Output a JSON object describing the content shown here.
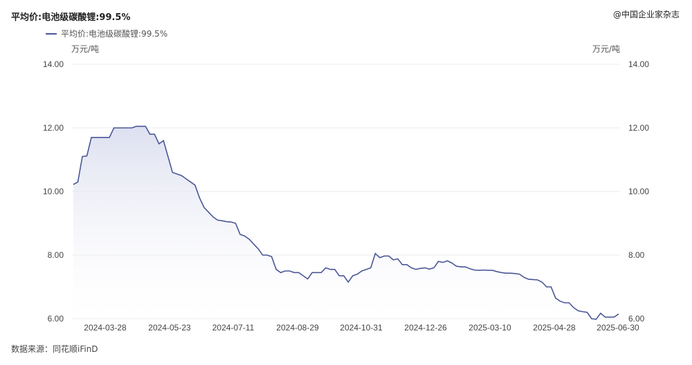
{
  "header": {
    "title": "平均价:电池级碳酸锂:99.5%",
    "watermark": "@中国企业家杂志"
  },
  "footer": {
    "source": "数据来源：同花顺iFinD"
  },
  "colors": {
    "line": "#4a5796",
    "area_top": "#d9dcee",
    "grid": "#ebebeb",
    "background": "#ffffff"
  },
  "chart_data": {
    "type": "area",
    "title": "平均价:电池级碳酸锂:99.5%",
    "ylabel_left": "万元/吨",
    "ylabel_right": "万元/吨",
    "ylim": [
      6,
      14
    ],
    "yticks": [
      "6.00",
      "8.00",
      "10.00",
      "12.00",
      "14.00"
    ],
    "xticks": [
      "2024-03-28",
      "2024-05-23",
      "2024-07-11",
      "2024-08-29",
      "2024-10-31",
      "2024-12-26",
      "2025-03-10",
      "2025-04-28",
      "2025-06-30"
    ],
    "grid": true,
    "legend_position": "top-left",
    "series": [
      {
        "name": "平均价:电池级碳酸锂:99.5%",
        "values": [
          10.22,
          10.3,
          11.1,
          11.12,
          11.7,
          11.7,
          11.7,
          11.7,
          11.7,
          12.0,
          12.0,
          12.0,
          12.0,
          12.0,
          12.05,
          12.05,
          12.05,
          11.8,
          11.8,
          11.5,
          11.6,
          11.1,
          10.6,
          10.55,
          10.5,
          10.4,
          10.3,
          10.2,
          9.8,
          9.5,
          9.35,
          9.2,
          9.1,
          9.08,
          9.05,
          9.04,
          9.0,
          8.65,
          8.6,
          8.5,
          8.35,
          8.2,
          8.0,
          8.0,
          7.95,
          7.55,
          7.45,
          7.5,
          7.5,
          7.45,
          7.45,
          7.35,
          7.25,
          7.45,
          7.45,
          7.45,
          7.6,
          7.55,
          7.55,
          7.35,
          7.35,
          7.15,
          7.35,
          7.4,
          7.5,
          7.55,
          7.6,
          8.05,
          7.92,
          7.97,
          7.97,
          7.85,
          7.88,
          7.7,
          7.7,
          7.6,
          7.55,
          7.58,
          7.6,
          7.56,
          7.6,
          7.8,
          7.77,
          7.82,
          7.75,
          7.65,
          7.63,
          7.63,
          7.57,
          7.53,
          7.52,
          7.53,
          7.52,
          7.52,
          7.48,
          7.45,
          7.43,
          7.43,
          7.42,
          7.4,
          7.3,
          7.24,
          7.23,
          7.22,
          7.15,
          7.0,
          7.0,
          6.65,
          6.55,
          6.5,
          6.5,
          6.35,
          6.25,
          6.22,
          6.2,
          6.0,
          5.98,
          6.17,
          6.05,
          6.05,
          6.05,
          6.15
        ]
      }
    ]
  }
}
